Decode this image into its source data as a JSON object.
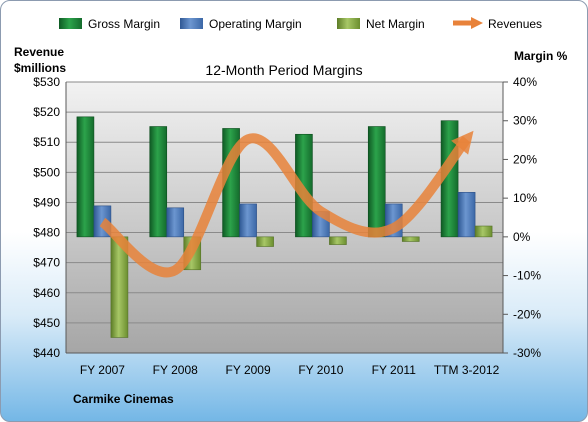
{
  "chart_data": {
    "type": "bar",
    "title": "12-Month Period Margins",
    "categories": [
      "FY 2007",
      "FY 2008",
      "FY 2009",
      "FY 2010",
      "FY 2011",
      "TTM 3-2012"
    ],
    "series": [
      {
        "name": "Gross Margin",
        "axis": "right",
        "values": [
          31,
          28.5,
          28,
          26.5,
          28.5,
          30
        ]
      },
      {
        "name": "Operating Margin",
        "axis": "right",
        "values": [
          8,
          7.5,
          8.5,
          6.5,
          8.5,
          11.5
        ]
      },
      {
        "name": "Net Margin",
        "axis": "right",
        "values": [
          -26,
          -8.5,
          -2.5,
          -2,
          -1.2,
          2.8
        ]
      },
      {
        "name": "Revenues",
        "axis": "left",
        "type": "line",
        "values": [
          483.5,
          467.5,
          511,
          487,
          481.5,
          511
        ]
      }
    ],
    "left_axis": {
      "label_line1": "Revenue",
      "label_line2": "$millions",
      "ylim": [
        440,
        530
      ],
      "ticks": [
        "$440",
        "$450",
        "$460",
        "$470",
        "$480",
        "$490",
        "$500",
        "$510",
        "$520",
        "$530"
      ]
    },
    "right_axis": {
      "label": "Margin %",
      "ylim": [
        -30,
        40
      ],
      "ticks": [
        "-30%",
        "-20%",
        "-10%",
        "0%",
        "10%",
        "20%",
        "30%",
        "40%"
      ]
    },
    "legend_position": "top",
    "grid": true,
    "colors": {
      "Gross Margin": "#1f8a3a",
      "Operating Margin": "#4f7dbc",
      "Net Margin": "#8fb04a",
      "Revenues": "#e8823a",
      "plot_bg": "#bfbfbf"
    }
  },
  "footer": {
    "company": "Carmike Cinemas"
  }
}
